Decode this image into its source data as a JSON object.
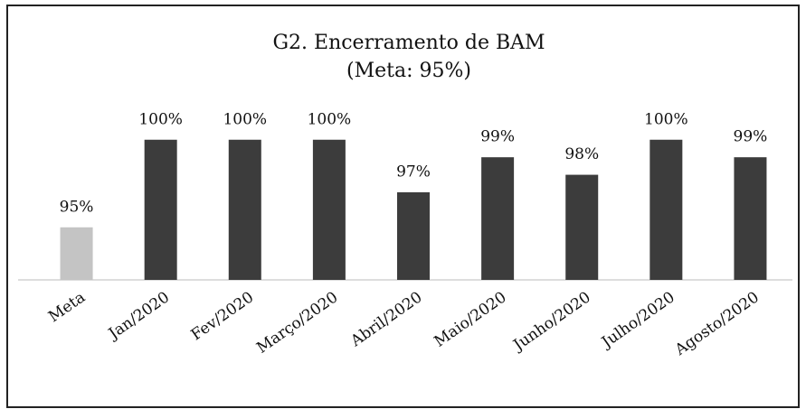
{
  "chart_data": {
    "type": "bar",
    "title": "G2. Encerramento de BAM",
    "subtitle": "(Meta: 95%)",
    "categories": [
      "Meta",
      "Jan/2020",
      "Fev/2020",
      "Março/2020",
      "Abril/2020",
      "Maio/2020",
      "Junho/2020",
      "Julho/2020",
      "Agosto/2020"
    ],
    "values": [
      95,
      100,
      100,
      100,
      97,
      99,
      98,
      100,
      99
    ],
    "value_labels": [
      "95%",
      "100%",
      "100%",
      "100%",
      "97%",
      "99%",
      "98%",
      "100%",
      "99%"
    ],
    "colors": [
      "#c4c4c4",
      "#3c3c3c",
      "#3c3c3c",
      "#3c3c3c",
      "#3c3c3c",
      "#3c3c3c",
      "#3c3c3c",
      "#3c3c3c",
      "#3c3c3c"
    ],
    "ylim": [
      92,
      100.4
    ]
  }
}
